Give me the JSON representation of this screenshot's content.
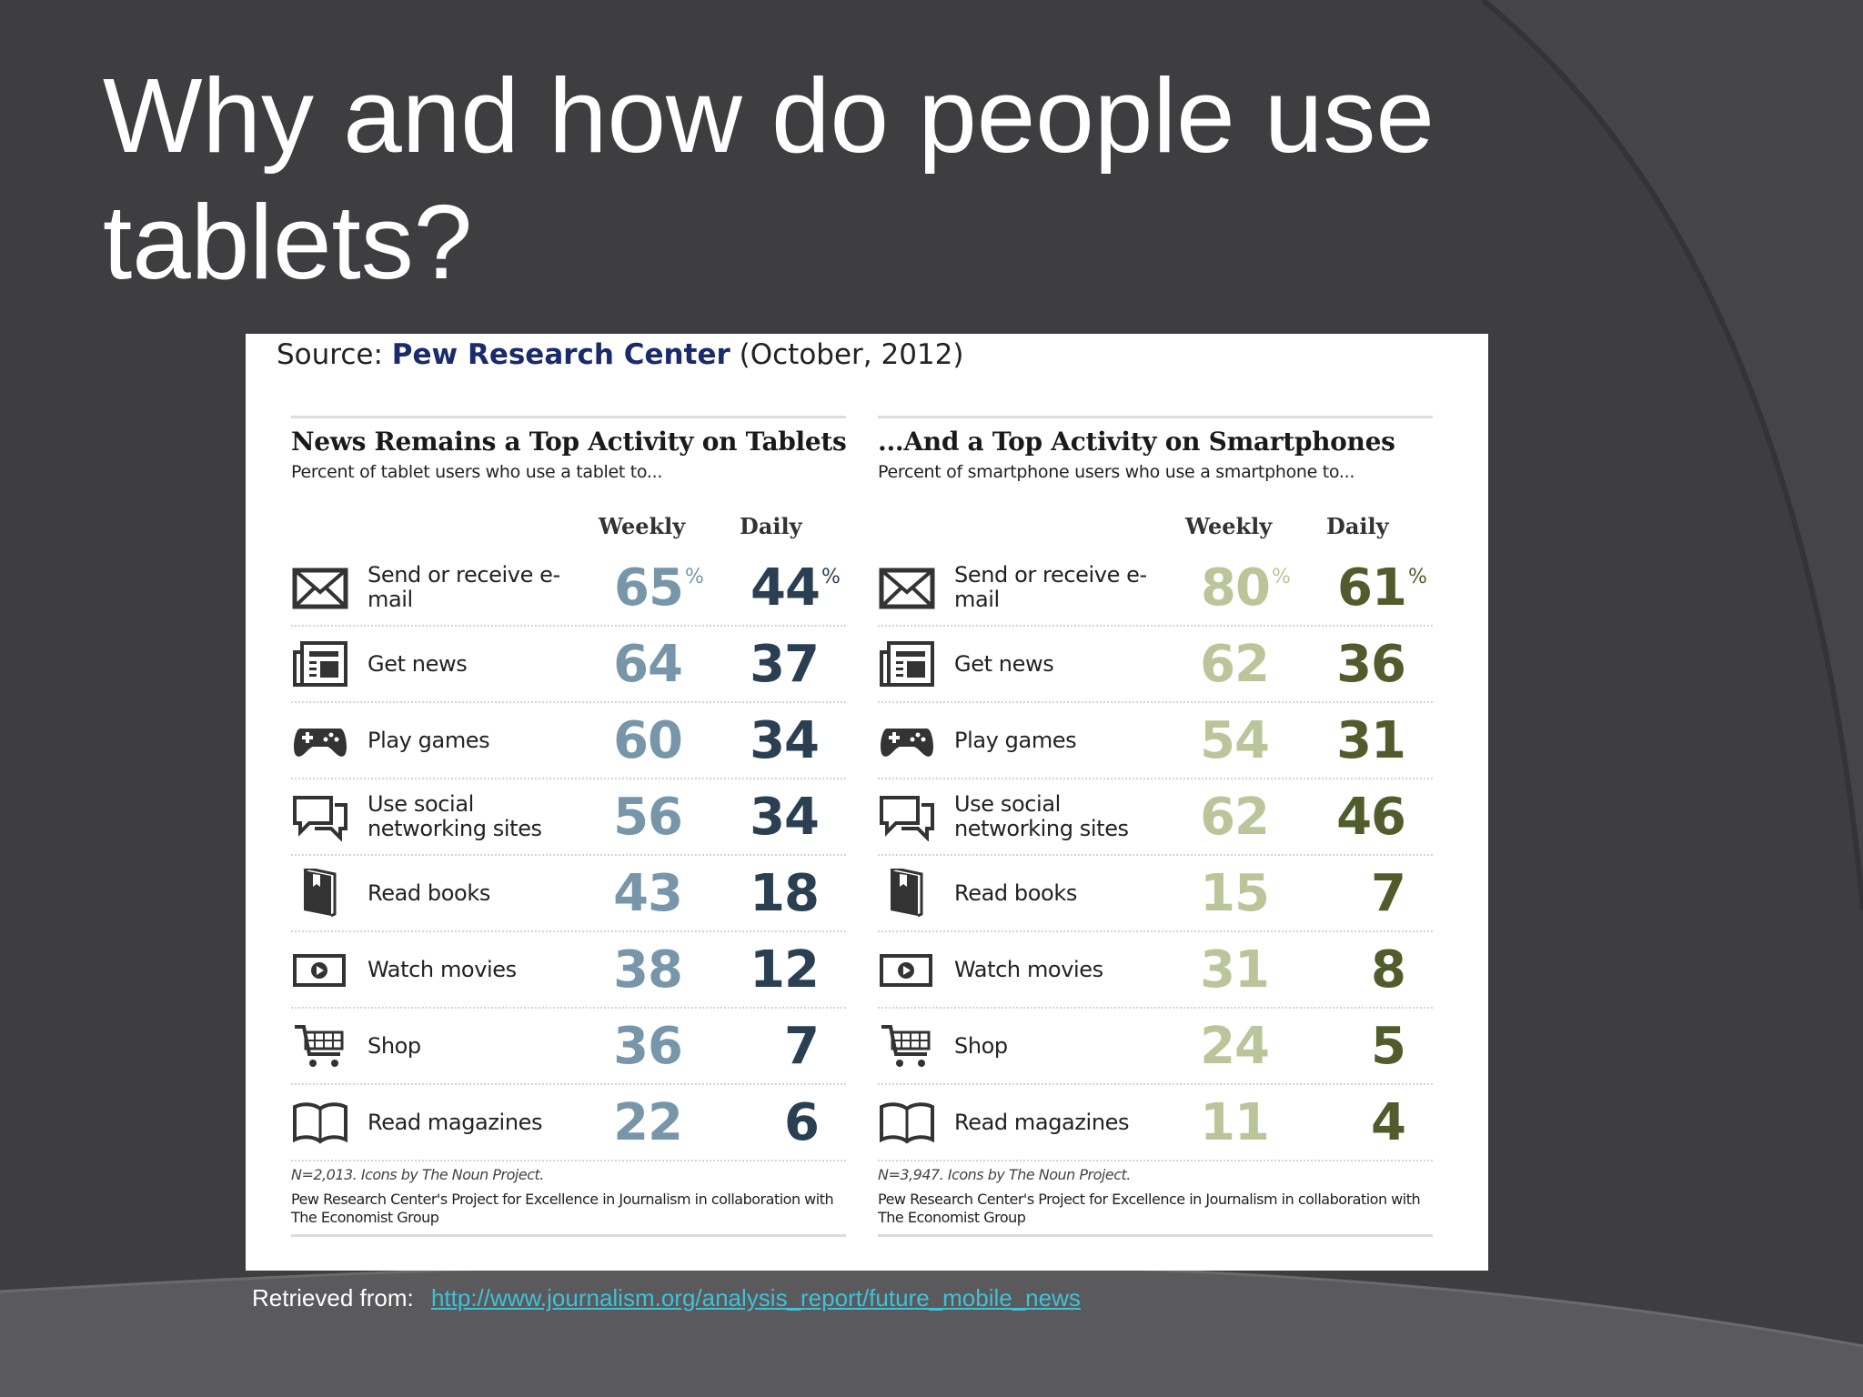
{
  "slide": {
    "title": "Why and how do people use tablets?",
    "retrieved_label": "Retrieved from:",
    "retrieved_url": "http://www.journalism.org/analysis_report/future_mobile_news",
    "colors": {
      "background": "#3e3e40",
      "link": "#3ec1d9"
    }
  },
  "source": {
    "prefix": "Source:",
    "org": "Pew Research Center",
    "date": "(October, 2012)"
  },
  "panels": [
    {
      "title": "News Remains a Top Activity on Tablets",
      "subtitle": "Percent of tablet users who use a tablet to...",
      "weekly_label": "Weekly",
      "daily_label": "Daily",
      "percent_sign": "%",
      "footnote": "N=2,013. Icons by The Noun Project.",
      "credit": "Pew Research Center's Project for Excellence in Journalism in collaboration with The Economist Group",
      "rows": [
        {
          "icon": "envelope-icon",
          "label": "Send or receive e-mail",
          "weekly": "65",
          "daily": "44"
        },
        {
          "icon": "newspaper-icon",
          "label": "Get news",
          "weekly": "64",
          "daily": "37"
        },
        {
          "icon": "gamepad-icon",
          "label": "Play games",
          "weekly": "60",
          "daily": "34"
        },
        {
          "icon": "chat-bubbles-icon",
          "label": "Use social networking sites",
          "weekly": "56",
          "daily": "34"
        },
        {
          "icon": "book-icon",
          "label": "Read books",
          "weekly": "43",
          "daily": "18"
        },
        {
          "icon": "video-play-icon",
          "label": "Watch movies",
          "weekly": "38",
          "daily": "12"
        },
        {
          "icon": "shopping-cart-icon",
          "label": "Shop",
          "weekly": "36",
          "daily": "7"
        },
        {
          "icon": "open-book-icon",
          "label": "Read magazines",
          "weekly": "22",
          "daily": "6"
        }
      ]
    },
    {
      "title": "...And a Top Activity on Smartphones",
      "subtitle": "Percent of smartphone users who use a smartphone to...",
      "weekly_label": "Weekly",
      "daily_label": "Daily",
      "percent_sign": "%",
      "footnote": "N=3,947. Icons by The Noun Project.",
      "credit": "Pew Research Center's Project for Excellence in Journalism in collaboration with The Economist Group",
      "rows": [
        {
          "icon": "envelope-icon",
          "label": "Send or receive e-mail",
          "weekly": "80",
          "daily": "61"
        },
        {
          "icon": "newspaper-icon",
          "label": "Get news",
          "weekly": "62",
          "daily": "36"
        },
        {
          "icon": "gamepad-icon",
          "label": "Play games",
          "weekly": "54",
          "daily": "31"
        },
        {
          "icon": "chat-bubbles-icon",
          "label": "Use social networking sites",
          "weekly": "62",
          "daily": "46"
        },
        {
          "icon": "book-icon",
          "label": "Read books",
          "weekly": "15",
          "daily": "7"
        },
        {
          "icon": "video-play-icon",
          "label": "Watch movies",
          "weekly": "31",
          "daily": "8"
        },
        {
          "icon": "shopping-cart-icon",
          "label": "Shop",
          "weekly": "24",
          "daily": "5"
        },
        {
          "icon": "open-book-icon",
          "label": "Read magazines",
          "weekly": "11",
          "daily": "4"
        }
      ]
    }
  ]
}
